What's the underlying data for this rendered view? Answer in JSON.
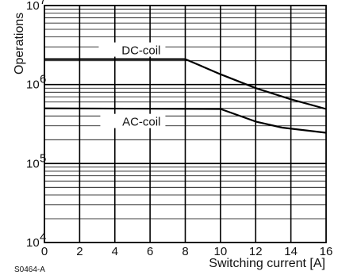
{
  "chart_data": {
    "type": "line",
    "xlabel": "Switching current [A]",
    "ylabel": "Operations",
    "x_ticks": [
      "0",
      "2",
      "4",
      "6",
      "8",
      "10",
      "12",
      "14",
      "16"
    ],
    "y_ticks": [
      {
        "base": "10",
        "exp": "4"
      },
      {
        "base": "10",
        "exp": "5"
      },
      {
        "base": "10",
        "exp": "6"
      },
      {
        "base": "10",
        "exp": "7"
      }
    ],
    "xlim": [
      0,
      16
    ],
    "ylim": [
      10000,
      10000000
    ],
    "y_scale": "log",
    "grid": true,
    "series": [
      {
        "name": "DC-coil",
        "x": [
          0,
          8,
          10,
          12,
          14,
          16
        ],
        "y": [
          2100000,
          2100000,
          1350000,
          900000,
          650000,
          490000
        ]
      },
      {
        "name": "AC-coil",
        "x": [
          0,
          10,
          12,
          13.5,
          16
        ],
        "y": [
          500000,
          490000,
          340000,
          285000,
          245000
        ]
      }
    ],
    "annotations": [
      {
        "text": "DC-coil",
        "series": "DC-coil"
      },
      {
        "text": "AC-coil",
        "series": "AC-coil"
      }
    ]
  },
  "figure_code": "S0464-A"
}
